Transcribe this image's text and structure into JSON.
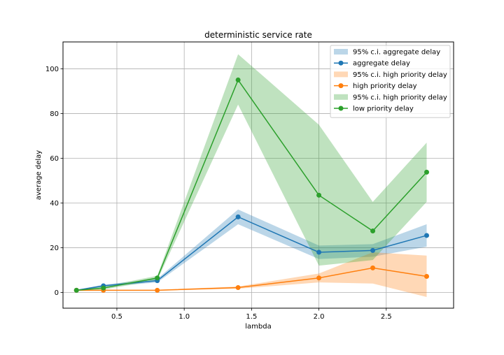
{
  "chart_data": {
    "type": "line",
    "title": "deterministic service rate",
    "xlabel": "lambda",
    "ylabel": "average delay",
    "xlim": [
      0.1,
      3.0
    ],
    "ylim": [
      -7,
      112
    ],
    "xticks": [
      0.5,
      1.0,
      1.5,
      2.0,
      2.5
    ],
    "xtick_labels": [
      "0.5",
      "1.0",
      "1.5",
      "2.0",
      "2.5"
    ],
    "yticks": [
      0,
      20,
      40,
      60,
      80,
      100
    ],
    "ytick_labels": [
      "0",
      "20",
      "40",
      "60",
      "80",
      "100"
    ],
    "grid": true,
    "legend_position": "top-right",
    "x": [
      0.2,
      0.4,
      0.8,
      1.4,
      2.0,
      2.4,
      2.8
    ],
    "series": [
      {
        "name": "aggregate delay",
        "ci_name": "95% c.i. aggregate delay",
        "color": "#1f77b4",
        "values": [
          1.0,
          3.0,
          5.3,
          33.8,
          18.0,
          18.8,
          25.5
        ],
        "ci_lower": [
          0.8,
          2.5,
          4.5,
          30.5,
          15.0,
          16.0,
          20.5
        ],
        "ci_upper": [
          1.2,
          3.5,
          6.1,
          37.1,
          21.0,
          21.6,
          30.5
        ]
      },
      {
        "name": "high priority delay",
        "ci_name": "95% c.i. high priority delay",
        "color": "#ff7f0e",
        "values": [
          1.0,
          1.0,
          1.0,
          2.2,
          6.5,
          11.0,
          7.2
        ],
        "ci_lower": [
          0.9,
          0.8,
          0.8,
          1.7,
          4.5,
          4.0,
          -2.0
        ],
        "ci_upper": [
          1.1,
          1.2,
          1.2,
          2.7,
          8.5,
          18.0,
          16.5
        ]
      },
      {
        "name": "low priority delay",
        "ci_name": "95% c.i. high priority delay",
        "color": "#2ca02c",
        "values": [
          1.0,
          2.0,
          6.5,
          95.0,
          43.5,
          27.5,
          53.8
        ],
        "ci_lower": [
          0.8,
          1.3,
          5.5,
          84.0,
          12.0,
          14.5,
          40.5
        ],
        "ci_upper": [
          1.2,
          2.7,
          7.5,
          106.5,
          75.0,
          40.5,
          67.0
        ]
      }
    ]
  }
}
